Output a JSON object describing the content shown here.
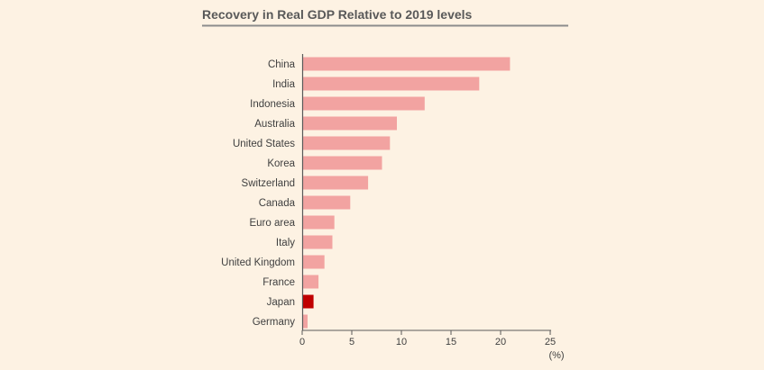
{
  "chart_data": {
    "type": "bar",
    "orientation": "horizontal",
    "title": "Recovery in Real GDP Relative to 2019 levels",
    "x_unit": "(%)",
    "xlim": [
      0,
      25
    ],
    "x_ticks": [
      "0",
      "5",
      "10",
      "15",
      "20",
      "25"
    ],
    "categories": [
      "China",
      "India",
      "Indonesia",
      "Australia",
      "United States",
      "Korea",
      "Switzerland",
      "Canada",
      "Euro area",
      "Italy",
      "United Kingdom",
      "France",
      "Japan",
      "Germany"
    ],
    "values": [
      20.9,
      17.8,
      12.3,
      9.5,
      8.8,
      8.0,
      6.6,
      4.8,
      3.2,
      3.0,
      2.2,
      1.6,
      1.1,
      0.5
    ],
    "highlight": "Japan",
    "colors": {
      "bar": "#f2a3a1",
      "highlight": "#c00000",
      "axis": "#5a5a5a",
      "title_rule": "#8c8c8c"
    },
    "grid": false,
    "legend": "none"
  }
}
